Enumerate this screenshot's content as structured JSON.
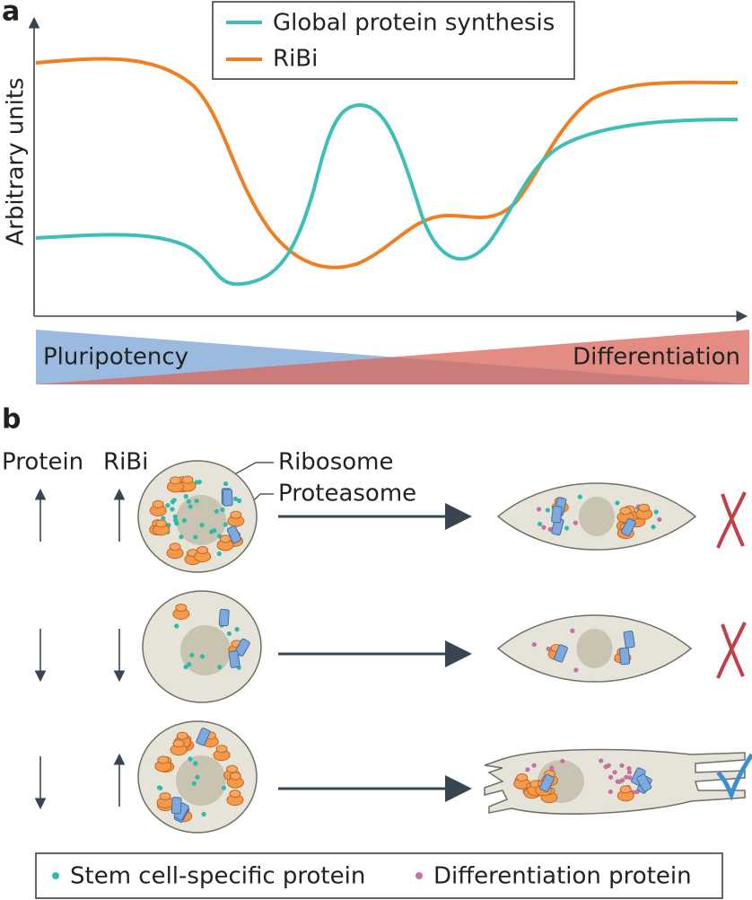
{
  "panel_a": {
    "label": "a",
    "legend": [
      "Global protein synthesis",
      "RiBi"
    ],
    "y_axis_label": "Arbitrary units",
    "gradient": {
      "left": "Pluripotency",
      "right": "Differentiation"
    }
  },
  "panel_b": {
    "label": "b",
    "column_headers": [
      "Protein",
      "RiBi"
    ],
    "callouts": [
      "Ribosome",
      "Proteasome"
    ],
    "legend": [
      "Stem cell-specific protein",
      "Differentiation protein"
    ]
  }
}
